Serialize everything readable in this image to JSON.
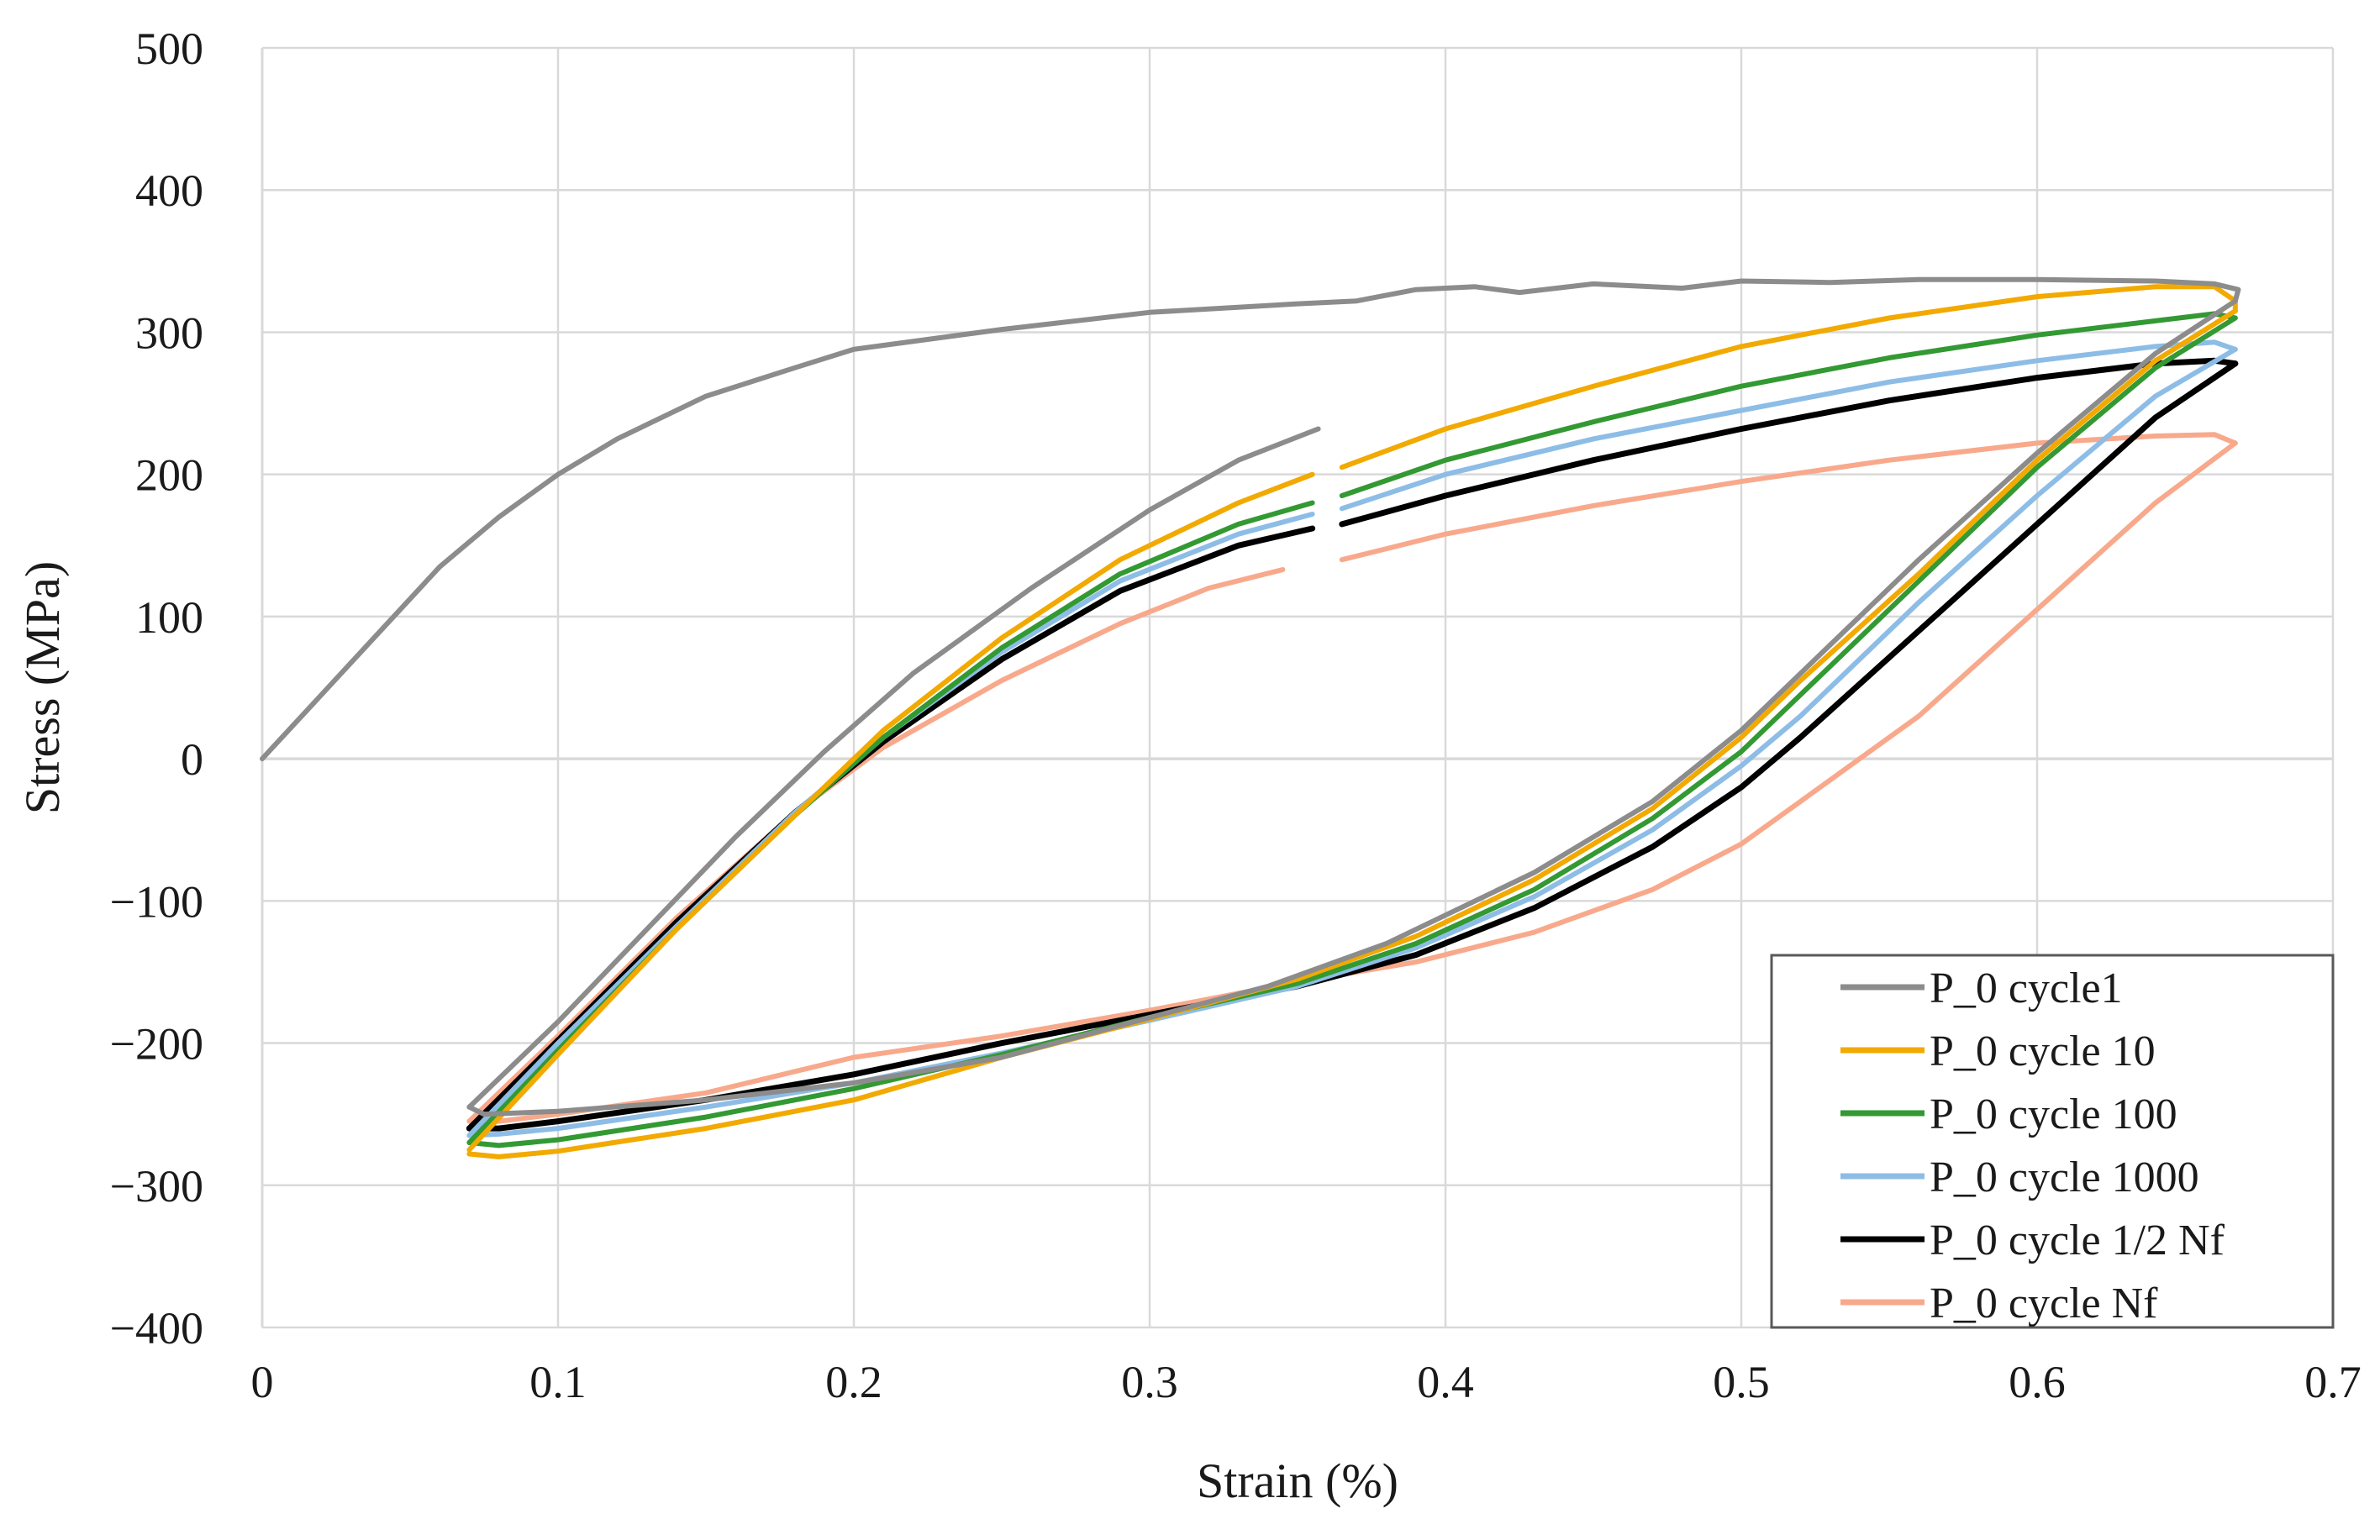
{
  "chart_data": {
    "type": "line",
    "title": "",
    "xlabel": "Strain  (%)",
    "ylabel": "Stress (MPa)",
    "xlim": [
      0,
      0.7
    ],
    "ylim": [
      -400,
      500
    ],
    "xticks": [
      0,
      0.1,
      0.2,
      0.3,
      0.4,
      0.5,
      0.6,
      0.7
    ],
    "yticks": [
      -400,
      -300,
      -200,
      -100,
      0,
      100,
      200,
      300,
      400,
      500
    ],
    "xtick_labels": [
      "0",
      "0.1",
      "0.2",
      "0.3",
      "0.4",
      "0.5",
      "0.6",
      "0.7"
    ],
    "ytick_labels": [
      "−400",
      "−300",
      "−200",
      "−100",
      "0",
      "100",
      "200",
      "300",
      "400",
      "500"
    ],
    "grid": true,
    "legend_position": "bottom-right",
    "series": [
      {
        "name": "P_0 cycle1",
        "color": "#8c8c8c",
        "segments": [
          [
            [
              0,
              0
            ],
            [
              0.02,
              45
            ],
            [
              0.04,
              90
            ],
            [
              0.06,
              135
            ],
            [
              0.08,
              170
            ],
            [
              0.1,
              200
            ],
            [
              0.12,
              225
            ],
            [
              0.15,
              255
            ],
            [
              0.18,
              275
            ],
            [
              0.2,
              288
            ],
            [
              0.25,
              302
            ],
            [
              0.3,
              314
            ],
            [
              0.35,
              320
            ],
            [
              0.37,
              322
            ],
            [
              0.39,
              330
            ],
            [
              0.41,
              332
            ],
            [
              0.425,
              328
            ],
            [
              0.45,
              334
            ],
            [
              0.48,
              331
            ],
            [
              0.5,
              336
            ],
            [
              0.53,
              335
            ],
            [
              0.56,
              337
            ],
            [
              0.6,
              337
            ],
            [
              0.64,
              336
            ],
            [
              0.66,
              334
            ],
            [
              0.668,
              330
            ],
            [
              0.667,
              322
            ]
          ],
          [
            [
              0.667,
              322
            ],
            [
              0.64,
              285
            ],
            [
              0.6,
              215
            ],
            [
              0.56,
              140
            ],
            [
              0.52,
              60
            ],
            [
              0.5,
              20
            ],
            [
              0.47,
              -30
            ],
            [
              0.43,
              -80
            ],
            [
              0.38,
              -130
            ],
            [
              0.34,
              -160
            ],
            [
              0.3,
              -182
            ],
            [
              0.25,
              -210
            ],
            [
              0.2,
              -228
            ],
            [
              0.15,
              -240
            ],
            [
              0.1,
              -248
            ],
            [
              0.075,
              -250
            ],
            [
              0.07,
              -245
            ]
          ],
          [
            [
              0.07,
              -245
            ],
            [
              0.1,
              -185
            ],
            [
              0.13,
              -120
            ],
            [
              0.16,
              -55
            ],
            [
              0.19,
              5
            ],
            [
              0.22,
              60
            ],
            [
              0.26,
              120
            ],
            [
              0.3,
              175
            ],
            [
              0.33,
              210
            ],
            [
              0.357,
              232
            ]
          ]
        ]
      },
      {
        "name": "P_0 cycle 10",
        "color": "#f2a900",
        "segments": [
          [
            [
              0.07,
              -275
            ],
            [
              0.1,
              -208
            ],
            [
              0.14,
              -120
            ],
            [
              0.18,
              -40
            ],
            [
              0.21,
              20
            ],
            [
              0.25,
              85
            ],
            [
              0.29,
              140
            ],
            [
              0.33,
              180
            ],
            [
              0.355,
              200
            ]
          ],
          [
            [
              0.365,
              205
            ],
            [
              0.4,
              232
            ],
            [
              0.45,
              262
            ],
            [
              0.5,
              290
            ],
            [
              0.55,
              310
            ],
            [
              0.6,
              325
            ],
            [
              0.64,
              332
            ],
            [
              0.66,
              332
            ],
            [
              0.667,
              322
            ],
            [
              0.667,
              315
            ]
          ],
          [
            [
              0.667,
              315
            ],
            [
              0.64,
              280
            ],
            [
              0.6,
              210
            ],
            [
              0.56,
              130
            ],
            [
              0.52,
              55
            ],
            [
              0.5,
              15
            ],
            [
              0.47,
              -35
            ],
            [
              0.43,
              -85
            ],
            [
              0.39,
              -125
            ],
            [
              0.35,
              -155
            ],
            [
              0.3,
              -183
            ],
            [
              0.25,
              -210
            ],
            [
              0.2,
              -240
            ],
            [
              0.15,
              -260
            ],
            [
              0.1,
              -276
            ],
            [
              0.08,
              -280
            ],
            [
              0.07,
              -278
            ]
          ]
        ]
      },
      {
        "name": "P_0 cycle 100",
        "color": "#339933",
        "segments": [
          [
            [
              0.07,
              -270
            ],
            [
              0.1,
              -205
            ],
            [
              0.14,
              -120
            ],
            [
              0.18,
              -40
            ],
            [
              0.21,
              15
            ],
            [
              0.25,
              78
            ],
            [
              0.29,
              130
            ],
            [
              0.33,
              165
            ],
            [
              0.355,
              180
            ]
          ],
          [
            [
              0.365,
              185
            ],
            [
              0.4,
              210
            ],
            [
              0.45,
              237
            ],
            [
              0.5,
              262
            ],
            [
              0.55,
              282
            ],
            [
              0.6,
              298
            ],
            [
              0.64,
              308
            ],
            [
              0.66,
              313
            ],
            [
              0.667,
              310
            ]
          ],
          [
            [
              0.667,
              310
            ],
            [
              0.64,
              275
            ],
            [
              0.6,
              205
            ],
            [
              0.56,
              125
            ],
            [
              0.52,
              45
            ],
            [
              0.5,
              5
            ],
            [
              0.47,
              -42
            ],
            [
              0.43,
              -92
            ],
            [
              0.39,
              -130
            ],
            [
              0.35,
              -158
            ],
            [
              0.3,
              -182
            ],
            [
              0.25,
              -208
            ],
            [
              0.2,
              -232
            ],
            [
              0.15,
              -252
            ],
            [
              0.1,
              -268
            ],
            [
              0.08,
              -272
            ],
            [
              0.07,
              -270
            ]
          ]
        ]
      },
      {
        "name": "P_0 cycle 1000",
        "color": "#8dbde6",
        "segments": [
          [
            [
              0.07,
              -265
            ],
            [
              0.1,
              -200
            ],
            [
              0.14,
              -118
            ],
            [
              0.18,
              -38
            ],
            [
              0.21,
              15
            ],
            [
              0.25,
              75
            ],
            [
              0.29,
              125
            ],
            [
              0.33,
              158
            ],
            [
              0.355,
              172
            ]
          ],
          [
            [
              0.365,
              176
            ],
            [
              0.4,
              200
            ],
            [
              0.45,
              225
            ],
            [
              0.5,
              245
            ],
            [
              0.55,
              265
            ],
            [
              0.6,
              280
            ],
            [
              0.64,
              290
            ],
            [
              0.66,
              293
            ],
            [
              0.667,
              288
            ]
          ],
          [
            [
              0.667,
              288
            ],
            [
              0.64,
              255
            ],
            [
              0.6,
              185
            ],
            [
              0.56,
              110
            ],
            [
              0.52,
              30
            ],
            [
              0.5,
              -5
            ],
            [
              0.47,
              -50
            ],
            [
              0.43,
              -97
            ],
            [
              0.39,
              -133
            ],
            [
              0.35,
              -160
            ],
            [
              0.3,
              -184
            ],
            [
              0.25,
              -207
            ],
            [
              0.2,
              -228
            ],
            [
              0.15,
              -245
            ],
            [
              0.1,
              -260
            ],
            [
              0.08,
              -264
            ],
            [
              0.07,
              -265
            ]
          ]
        ]
      },
      {
        "name": "P_0 cycle 1/2 Nf",
        "color": "#000000",
        "segments": [
          [
            [
              0.07,
              -260
            ],
            [
              0.1,
              -198
            ],
            [
              0.14,
              -115
            ],
            [
              0.18,
              -38
            ],
            [
              0.21,
              12
            ],
            [
              0.25,
              70
            ],
            [
              0.29,
              118
            ],
            [
              0.33,
              150
            ],
            [
              0.355,
              162
            ]
          ],
          [
            [
              0.365,
              165
            ],
            [
              0.4,
              185
            ],
            [
              0.45,
              210
            ],
            [
              0.5,
              232
            ],
            [
              0.55,
              252
            ],
            [
              0.6,
              268
            ],
            [
              0.64,
              278
            ],
            [
              0.66,
              280
            ],
            [
              0.667,
              278
            ]
          ],
          [
            [
              0.667,
              278
            ],
            [
              0.64,
              240
            ],
            [
              0.6,
              165
            ],
            [
              0.56,
              90
            ],
            [
              0.52,
              15
            ],
            [
              0.5,
              -20
            ],
            [
              0.47,
              -62
            ],
            [
              0.43,
              -105
            ],
            [
              0.39,
              -138
            ],
            [
              0.35,
              -160
            ],
            [
              0.3,
              -180
            ],
            [
              0.25,
              -200
            ],
            [
              0.2,
              -222
            ],
            [
              0.15,
              -240
            ],
            [
              0.1,
              -255
            ],
            [
              0.08,
              -260
            ],
            [
              0.07,
              -260
            ]
          ]
        ]
      },
      {
        "name": "P_0 cycle Nf",
        "color": "#f8a98c",
        "segments": [
          [
            [
              0.07,
              -255
            ],
            [
              0.1,
              -195
            ],
            [
              0.14,
              -112
            ],
            [
              0.18,
              -38
            ],
            [
              0.21,
              8
            ],
            [
              0.25,
              55
            ],
            [
              0.29,
              95
            ],
            [
              0.32,
              120
            ],
            [
              0.345,
              133
            ]
          ],
          [
            [
              0.365,
              140
            ],
            [
              0.4,
              158
            ],
            [
              0.45,
              178
            ],
            [
              0.5,
              195
            ],
            [
              0.55,
              210
            ],
            [
              0.6,
              222
            ],
            [
              0.64,
              227
            ],
            [
              0.66,
              228
            ],
            [
              0.667,
              222
            ]
          ],
          [
            [
              0.667,
              222
            ],
            [
              0.64,
              180
            ],
            [
              0.6,
              105
            ],
            [
              0.56,
              30
            ],
            [
              0.52,
              -30
            ],
            [
              0.5,
              -60
            ],
            [
              0.47,
              -92
            ],
            [
              0.43,
              -122
            ],
            [
              0.39,
              -143
            ],
            [
              0.35,
              -157
            ],
            [
              0.3,
              -177
            ],
            [
              0.25,
              -195
            ],
            [
              0.2,
              -210
            ],
            [
              0.15,
              -235
            ],
            [
              0.1,
              -250
            ],
            [
              0.08,
              -255
            ],
            [
              0.07,
              -255
            ]
          ]
        ]
      }
    ]
  }
}
